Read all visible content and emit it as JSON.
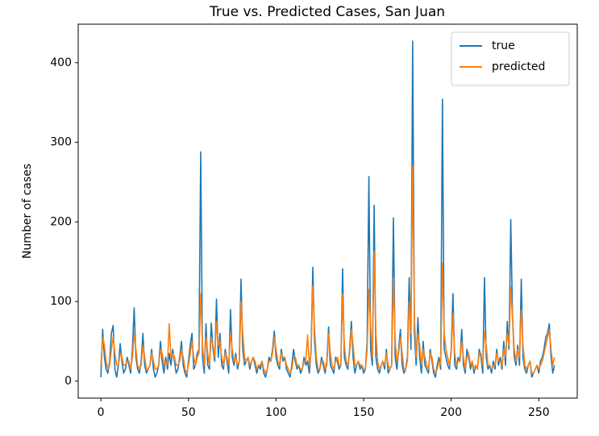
{
  "chart_data": {
    "type": "line",
    "title": "True vs. Predicted Cases, San Juan",
    "y_label": "Number of cases",
    "x": [
      0,
      1,
      2,
      3,
      4,
      5,
      6,
      7,
      8,
      9,
      10,
      11,
      12,
      13,
      14,
      15,
      16,
      17,
      18,
      19,
      20,
      21,
      22,
      23,
      24,
      25,
      26,
      27,
      28,
      29,
      30,
      31,
      32,
      33,
      34,
      35,
      36,
      37,
      38,
      39,
      40,
      41,
      42,
      43,
      44,
      45,
      46,
      47,
      48,
      49,
      50,
      51,
      52,
      53,
      54,
      55,
      56,
      57,
      58,
      59,
      60,
      61,
      62,
      63,
      64,
      65,
      66,
      67,
      68,
      69,
      70,
      71,
      72,
      73,
      74,
      75,
      76,
      77,
      78,
      79,
      80,
      81,
      82,
      83,
      84,
      85,
      86,
      87,
      88,
      89,
      90,
      91,
      92,
      93,
      94,
      95,
      96,
      97,
      98,
      99,
      100,
      101,
      102,
      103,
      104,
      105,
      106,
      107,
      108,
      109,
      110,
      111,
      112,
      113,
      114,
      115,
      116,
      117,
      118,
      119,
      120,
      121,
      122,
      123,
      124,
      125,
      126,
      127,
      128,
      129,
      130,
      131,
      132,
      133,
      134,
      135,
      136,
      137,
      138,
      139,
      140,
      141,
      142,
      143,
      144,
      145,
      146,
      147,
      148,
      149,
      150,
      151,
      152,
      153,
      154,
      155,
      156,
      157,
      158,
      159,
      160,
      161,
      162,
      163,
      164,
      165,
      166,
      167,
      168,
      169,
      170,
      171,
      172,
      173,
      174,
      175,
      176,
      177,
      178,
      179,
      180,
      181,
      182,
      183,
      184,
      185,
      186,
      187,
      188,
      189,
      190,
      191,
      192,
      193,
      194,
      195,
      196,
      197,
      198,
      199,
      200,
      201,
      202,
      203,
      204,
      205,
      206,
      207,
      208,
      209,
      210,
      211,
      212,
      213,
      214,
      215,
      216,
      217,
      218,
      219,
      220,
      221,
      222,
      223,
      224,
      225,
      226,
      227,
      228,
      229,
      230,
      231,
      232,
      233,
      234,
      235,
      236,
      237,
      238,
      239,
      240,
      241,
      242,
      243,
      244,
      245,
      246,
      247,
      248,
      249,
      250,
      251,
      252,
      253,
      254,
      255,
      256,
      257,
      258,
      259
    ],
    "series": [
      {
        "name": "true",
        "color": "#1f77b4",
        "values": [
          5,
          65,
          30,
          15,
          10,
          25,
          60,
          70,
          15,
          5,
          20,
          47,
          25,
          10,
          15,
          30,
          20,
          10,
          40,
          92,
          30,
          15,
          10,
          25,
          60,
          20,
          10,
          15,
          20,
          40,
          15,
          5,
          10,
          20,
          50,
          25,
          10,
          30,
          15,
          35,
          20,
          40,
          25,
          10,
          15,
          30,
          50,
          20,
          10,
          5,
          25,
          45,
          60,
          15,
          20,
          35,
          40,
          288,
          30,
          10,
          72,
          20,
          15,
          73,
          40,
          25,
          103,
          30,
          60,
          20,
          15,
          40,
          25,
          10,
          90,
          30,
          20,
          35,
          15,
          25,
          128,
          40,
          20,
          25,
          30,
          15,
          25,
          30,
          20,
          10,
          20,
          15,
          25,
          10,
          5,
          15,
          30,
          25,
          40,
          63,
          30,
          20,
          15,
          40,
          25,
          30,
          15,
          10,
          5,
          20,
          40,
          25,
          15,
          20,
          10,
          15,
          30,
          20,
          25,
          10,
          40,
          143,
          50,
          20,
          10,
          15,
          30,
          20,
          10,
          25,
          68,
          20,
          15,
          10,
          30,
          25,
          15,
          20,
          141,
          30,
          20,
          15,
          40,
          75,
          30,
          10,
          20,
          25,
          15,
          20,
          10,
          15,
          50,
          257,
          40,
          20,
          221,
          30,
          15,
          10,
          20,
          25,
          15,
          40,
          10,
          15,
          20,
          205,
          30,
          15,
          40,
          65,
          20,
          10,
          15,
          30,
          130,
          40,
          427,
          60,
          20,
          80,
          30,
          10,
          50,
          20,
          15,
          10,
          40,
          25,
          10,
          5,
          20,
          30,
          15,
          354,
          40,
          30,
          20,
          15,
          40,
          110,
          20,
          15,
          30,
          25,
          65,
          20,
          10,
          40,
          30,
          15,
          25,
          10,
          20,
          15,
          40,
          30,
          10,
          130,
          30,
          15,
          20,
          10,
          25,
          15,
          40,
          20,
          30,
          15,
          50,
          20,
          75,
          40,
          203,
          80,
          30,
          20,
          45,
          20,
          128,
          30,
          15,
          10,
          20,
          25,
          5,
          10,
          15,
          20,
          10,
          25,
          30,
          40,
          55,
          60,
          72,
          30,
          10,
          20
        ]
      },
      {
        "name": "predicted",
        "color": "#ff7f0e",
        "values": [
          20,
          55,
          45,
          25,
          15,
          20,
          40,
          55,
          35,
          20,
          20,
          35,
          30,
          20,
          20,
          25,
          25,
          15,
          30,
          60,
          40,
          20,
          15,
          20,
          45,
          30,
          15,
          15,
          20,
          35,
          25,
          15,
          15,
          20,
          40,
          35,
          20,
          25,
          20,
          72,
          30,
          35,
          30,
          20,
          20,
          25,
          40,
          30,
          15,
          10,
          20,
          35,
          50,
          30,
          20,
          30,
          35,
          110,
          45,
          20,
          55,
          35,
          20,
          55,
          45,
          30,
          75,
          45,
          50,
          30,
          20,
          35,
          30,
          20,
          60,
          40,
          25,
          30,
          20,
          25,
          100,
          60,
          30,
          25,
          30,
          20,
          25,
          30,
          25,
          15,
          20,
          20,
          25,
          15,
          10,
          15,
          25,
          25,
          35,
          55,
          40,
          25,
          20,
          35,
          30,
          30,
          20,
          15,
          10,
          15,
          30,
          30,
          20,
          20,
          15,
          15,
          25,
          25,
          58,
          20,
          35,
          120,
          65,
          30,
          15,
          15,
          25,
          25,
          15,
          20,
          60,
          35,
          20,
          15,
          25,
          30,
          20,
          20,
          110,
          45,
          25,
          20,
          35,
          65,
          45,
          20,
          20,
          25,
          20,
          20,
          15,
          15,
          40,
          115,
          70,
          30,
          163,
          60,
          25,
          15,
          20,
          25,
          20,
          35,
          20,
          15,
          20,
          130,
          50,
          25,
          35,
          55,
          35,
          15,
          15,
          25,
          100,
          60,
          270,
          80,
          30,
          60,
          45,
          20,
          40,
          30,
          20,
          15,
          35,
          30,
          15,
          10,
          15,
          25,
          20,
          148,
          60,
          40,
          30,
          20,
          35,
          85,
          35,
          20,
          25,
          25,
          50,
          30,
          15,
          30,
          35,
          20,
          25,
          15,
          20,
          15,
          35,
          35,
          20,
          62,
          45,
          20,
          20,
          15,
          20,
          20,
          35,
          25,
          25,
          20,
          40,
          30,
          60,
          45,
          118,
          80,
          40,
          25,
          40,
          30,
          90,
          45,
          20,
          15,
          20,
          25,
          10,
          10,
          15,
          20,
          15,
          20,
          25,
          35,
          45,
          55,
          65,
          40,
          20,
          30
        ]
      }
    ],
    "xlim": [
      -12.95,
      271.95
    ],
    "xticks": [
      0,
      50,
      100,
      150,
      200,
      250
    ],
    "ylim": [
      -21.35,
      448.35
    ],
    "yticks": [
      0,
      100,
      200,
      300,
      400
    ],
    "legend": "upper right",
    "grid": false
  }
}
